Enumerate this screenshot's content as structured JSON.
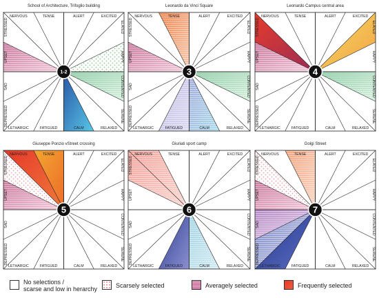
{
  "emotions": {
    "top": [
      "NERVOUS",
      "TENSE",
      "ALERT",
      "EXCITED"
    ],
    "right": [
      "ELATED",
      "HAPPY",
      "CONTENTED",
      "SERENE"
    ],
    "bottom": [
      "LETHARGIC",
      "FATIGUED",
      "CALM",
      "RELAXED"
    ],
    "left": [
      "STRESSED",
      "UPSET",
      "SAD",
      "DEPRESSED"
    ]
  },
  "colors": {
    "frequent": "#e53b2c",
    "average": "#c7508a",
    "scarce": "#e8a0a8",
    "center": "#111111"
  },
  "panels": [
    {
      "title": "School of Architecture, Trifoglio building",
      "number": "1-2",
      "sectors": [
        {
          "k": "UPSET",
          "level": "average",
          "c1": "#c46b94",
          "c2": "#f3c9da"
        },
        {
          "k": "HAPPY",
          "level": "scarce",
          "c1": "#8ec98f",
          "c2": "#dff1dc"
        },
        {
          "k": "CONTENTED",
          "level": "average",
          "c1": "#7fc59b",
          "c2": "#d5efdc"
        },
        {
          "k": "CALM",
          "level": "frequent",
          "c1": "#2a57a8",
          "c2": "#58c7e6"
        }
      ]
    },
    {
      "title": "Leonardo da Vinci Square",
      "number": "3",
      "sectors": [
        {
          "k": "TENSE",
          "level": "average",
          "c1": "#f07a3e",
          "c2": "#f8c5a8"
        },
        {
          "k": "UPSET",
          "level": "average",
          "c1": "#c46b94",
          "c2": "#f3c9da"
        },
        {
          "k": "CONTENTED",
          "level": "average",
          "c1": "#7fc59b",
          "c2": "#d5efdc"
        },
        {
          "k": "CALM",
          "level": "average",
          "c1": "#9aa3d8",
          "c2": "#a8dcea"
        },
        {
          "k": "FATIGUED",
          "level": "average",
          "c1": "#b9b6e3",
          "c2": "#d8d6f0"
        }
      ]
    },
    {
      "title": "Leonardo Campus central area",
      "number": "4",
      "sectors": [
        {
          "k": "STRESSED",
          "level": "frequent",
          "c1": "#e53b2c",
          "c2": "#9a2b55"
        },
        {
          "k": "ELATED",
          "level": "frequent",
          "c1": "#f3dc62",
          "c2": "#f4a146"
        },
        {
          "k": "UPSET",
          "level": "average",
          "c1": "#c46b94",
          "c2": "#f3c9da"
        },
        {
          "k": "CONTENTED",
          "level": "average",
          "c1": "#7fc59b",
          "c2": "#d5efdc"
        }
      ]
    },
    {
      "title": "Giuseppe Ponzio vStreet crossing",
      "number": "5",
      "sectors": [
        {
          "k": "NERVOUS",
          "level": "frequent",
          "c1": "#e5392a",
          "c2": "#f07a3a"
        },
        {
          "k": "TENSE",
          "level": "frequent",
          "c1": "#f3a72f",
          "c2": "#ec6a2b"
        },
        {
          "k": "STRESSED",
          "level": "scarce",
          "c1": "#e8a0a8",
          "c2": "#f6d1d6"
        },
        {
          "k": "UPSET",
          "level": "average",
          "c1": "#c46b94",
          "c2": "#f3c9da"
        }
      ]
    },
    {
      "title": "Giuriati sport camp",
      "number": "6",
      "sectors": [
        {
          "k": "NERVOUS",
          "level": "average",
          "c1": "#f29a92",
          "c2": "#fbd6cf"
        },
        {
          "k": "STRESSED",
          "level": "average",
          "c1": "#f29a92",
          "c2": "#fbd6cf"
        },
        {
          "k": "CALM",
          "level": "average",
          "c1": "#9bd0e0",
          "c2": "#cfe9f1"
        },
        {
          "k": "FATIGUED",
          "level": "frequent",
          "c1": "#2b3f92",
          "c2": "#8c8fd0"
        }
      ]
    },
    {
      "title": "Golgi Street",
      "number": "7",
      "sectors": [
        {
          "k": "TENSE",
          "level": "average",
          "c1": "#f29a70",
          "c2": "#fbd3bf"
        },
        {
          "k": "STRESSED",
          "level": "scarce",
          "c1": "#e8a0a8",
          "c2": "#f6d1d6"
        },
        {
          "k": "UPSET",
          "level": "average",
          "c1": "#c46b94",
          "c2": "#f3c9da"
        },
        {
          "k": "SAD",
          "level": "average",
          "c1": "#b07fc0",
          "c2": "#e3cdeb"
        },
        {
          "k": "DEPRESSED",
          "level": "average",
          "c1": "#6b79c0",
          "c2": "#c9cde9"
        },
        {
          "k": "LETHARGIC",
          "level": "frequent",
          "c1": "#1f3488",
          "c2": "#5f6fc4"
        }
      ]
    }
  ],
  "legend": [
    {
      "label": "No selections /\nscarse and low in herarchy",
      "style": "none"
    },
    {
      "label": "Scarsely selected",
      "style": "scarce"
    },
    {
      "label": "Averagely selected",
      "style": "average"
    },
    {
      "label": "Frequently selected",
      "style": "frequent"
    }
  ]
}
